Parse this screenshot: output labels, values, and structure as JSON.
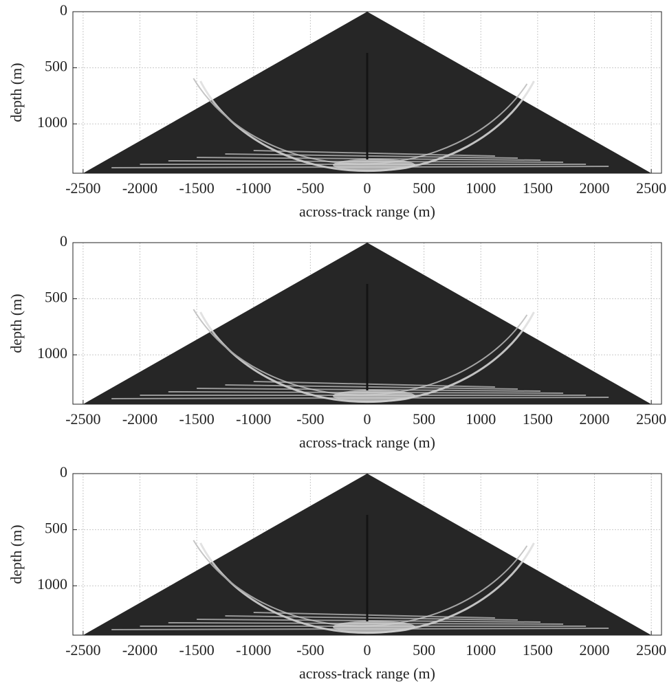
{
  "chart_data": [
    {
      "type": "image",
      "xlabel": "across-track range (m)",
      "ylabel": "depth (m)",
      "xlim": [
        -2590,
        2590
      ],
      "ylim": [
        0,
        1440
      ],
      "y_reversed": true,
      "xticks": [
        -2500,
        -2000,
        -1500,
        -1000,
        -500,
        0,
        500,
        1000,
        1500,
        2000,
        2500
      ],
      "yticks": [
        0,
        500,
        1000
      ],
      "grid": true,
      "color": "#262626"
    },
    {
      "type": "image",
      "xlabel": "across-track range (m)",
      "ylabel": "depth (m)",
      "xlim": [
        -2590,
        2590
      ],
      "ylim": [
        0,
        1440
      ],
      "y_reversed": true,
      "xticks": [
        -2500,
        -2000,
        -1500,
        -1000,
        -500,
        0,
        500,
        1000,
        1500,
        2000,
        2500
      ],
      "yticks": [
        0,
        500,
        1000
      ],
      "grid": true,
      "color": "#262626"
    },
    {
      "type": "image",
      "xlabel": "across-track range (m)",
      "ylabel": "depth (m)",
      "xlim": [
        -2590,
        2590
      ],
      "ylim": [
        0,
        1440
      ],
      "y_reversed": true,
      "xticks": [
        -2500,
        -2000,
        -1500,
        -1000,
        -500,
        0,
        500,
        1000,
        1500,
        2000,
        2500
      ],
      "yticks": [
        0,
        500,
        1000
      ],
      "grid": true,
      "color": "#262626"
    }
  ]
}
